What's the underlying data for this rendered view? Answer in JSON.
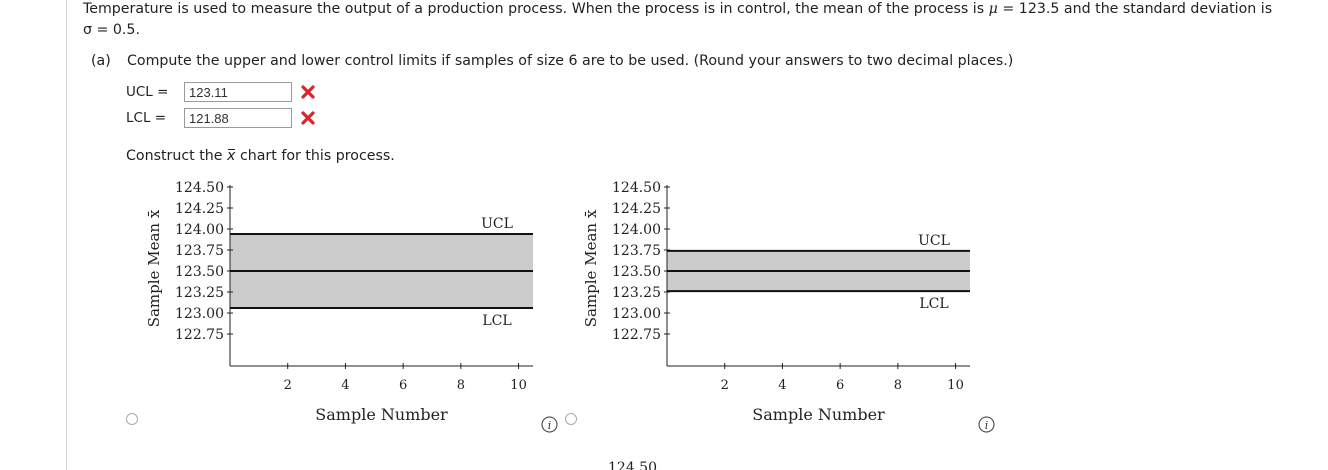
{
  "problem": {
    "intro_line1_part1": "Temperature is used to measure the output of a production process. When the process is in control, the mean of the process is ",
    "mu_symbol": "μ",
    "mu_expr": " = 123.5 and the standard deviation is",
    "sigma_line": "σ = 0.5."
  },
  "part_a": {
    "label": "(a)",
    "text": "Compute the upper and lower control limits if samples of size 6 are to be used. (Round your answers to two decimal places.)",
    "ucl_label": "UCL  =",
    "ucl_value": "123.11",
    "lcl_label": "LCL  =",
    "lcl_value": "121.88",
    "status_colors": {
      "incorrect": "#d9262c"
    }
  },
  "construct": {
    "text_before": "Construct the ",
    "symbol": "x",
    "text_after": " chart for this process."
  },
  "chart_data": [
    {
      "type": "line",
      "xlabel": "Sample Number",
      "ylabel": "Sample Mean x̄",
      "xlim": [
        0,
        10.5
      ],
      "ylim": [
        122.75,
        124.5
      ],
      "x_ticks": [
        "2",
        "4",
        "6",
        "8",
        "10"
      ],
      "y_ticks": [
        "124.50",
        "124.25",
        "124.00",
        "123.75",
        "123.50",
        "123.25",
        "123.00",
        "122.75"
      ],
      "lines": [
        {
          "name": "UCL",
          "value": 123.94
        },
        {
          "name": "Center",
          "value": 123.5
        },
        {
          "name": "LCL",
          "value": 123.06
        }
      ],
      "band_color": "#cccccc"
    },
    {
      "type": "line",
      "xlabel": "Sample Number",
      "ylabel": "Sample Mean x̄",
      "xlim": [
        0,
        10.5
      ],
      "ylim": [
        122.75,
        124.5
      ],
      "x_ticks": [
        "2",
        "4",
        "6",
        "8",
        "10"
      ],
      "y_ticks": [
        "124.50",
        "124.25",
        "124.00",
        "123.75",
        "123.50",
        "123.25",
        "123.00",
        "122.75"
      ],
      "lines": [
        {
          "name": "UCL",
          "value": 123.74
        },
        {
          "name": "Center",
          "value": 123.5
        },
        {
          "name": "LCL",
          "value": 123.26
        }
      ],
      "band_color": "#cccccc"
    }
  ],
  "next_chart_partial_label": "124.50"
}
